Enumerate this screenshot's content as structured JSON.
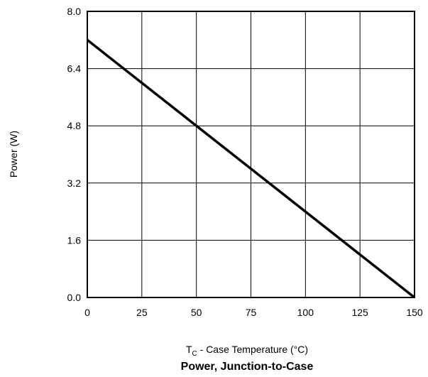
{
  "chart_data": {
    "type": "line",
    "title": "Power, Junction-to-Case",
    "xlabel": {
      "main": "T",
      "sub": "C",
      "rest": " - Case Temperature (°C)"
    },
    "ylabel": "Power (W)",
    "xlim": [
      0,
      150
    ],
    "ylim": [
      0,
      8
    ],
    "xticks": [
      "0",
      "25",
      "50",
      "75",
      "100",
      "125",
      "150"
    ],
    "yticks": [
      "0.0",
      "1.6",
      "3.2",
      "4.8",
      "6.4",
      "8.0"
    ],
    "grid": true,
    "legend": "none",
    "series": [
      {
        "x": [
          0,
          150
        ],
        "y": [
          7.2,
          0
        ],
        "color": "#000000"
      }
    ]
  }
}
